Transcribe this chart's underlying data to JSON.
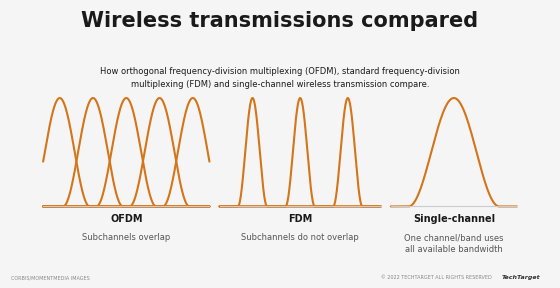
{
  "title": "Wireless transmissions compared",
  "subtitle": "How orthogonal frequency-division multiplexing (OFDM), standard frequency-division\nmultiplexing (FDM) and single-channel wireless transmission compare.",
  "bg_color": "#f5f5f5",
  "inner_bg_color": "#ffffff",
  "wave_color": "#d4751a",
  "wave_linewidth": 1.5,
  "panels": [
    {
      "label": "OFDM",
      "sublabel": "Subchannels overlap",
      "type": "ofdm"
    },
    {
      "label": "FDM",
      "sublabel": "Subchannels do not overlap",
      "type": "fdm"
    },
    {
      "label": "Single-channel",
      "sublabel": "One channel/band uses\nall available bandwidth",
      "type": "single"
    }
  ],
  "title_fontsize": 15,
  "subtitle_fontsize": 6.0,
  "label_fontsize": 7.0,
  "sublabel_fontsize": 6.0,
  "title_color": "#1a1a1a",
  "label_color": "#1a1a1a",
  "sublabel_color": "#555555",
  "baseline_color": "#cccccc",
  "footer_left": "CORBIS/MOMENTMEDIA IMAGES",
  "footer_right": "© 2022 TECHTARGET ALL RIGHTS RESERVED",
  "footer_logo": "TechTarget",
  "footer_bg": "#e0e0e0",
  "footer_text_color": "#888888"
}
